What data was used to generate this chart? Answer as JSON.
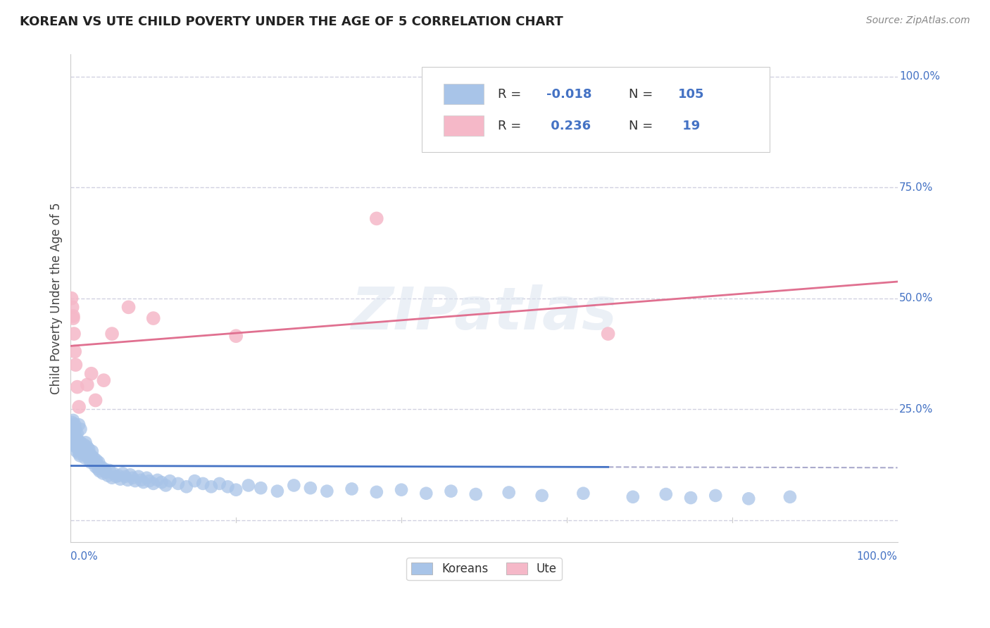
{
  "title": "KOREAN VS UTE CHILD POVERTY UNDER THE AGE OF 5 CORRELATION CHART",
  "source": "Source: ZipAtlas.com",
  "ylabel": "Child Poverty Under the Age of 5",
  "watermark": "ZIPatlas",
  "bg_color": "#ffffff",
  "plot_bg_color": "#ffffff",
  "grid_color": "#ccccdd",
  "korean_line_color": "#4472c4",
  "ute_line_color": "#e07090",
  "korean_dot_color": "#a8c4e8",
  "ute_dot_color": "#f5b8c8",
  "legend_r_color": "#4472c4",
  "title_color": "#222222",
  "source_color": "#888888",
  "axis_label_color": "#4472c4",
  "dashed_line_color": "#aaaacc",
  "korean_R": -0.018,
  "ute_R": 0.236,
  "korean_N": 105,
  "ute_N": 19,
  "korean_scatter_x": [
    0.001,
    0.001,
    0.002,
    0.002,
    0.003,
    0.003,
    0.003,
    0.004,
    0.004,
    0.004,
    0.005,
    0.005,
    0.005,
    0.006,
    0.006,
    0.007,
    0.007,
    0.007,
    0.008,
    0.008,
    0.009,
    0.009,
    0.01,
    0.01,
    0.011,
    0.012,
    0.012,
    0.013,
    0.014,
    0.015,
    0.016,
    0.017,
    0.018,
    0.019,
    0.02,
    0.021,
    0.022,
    0.023,
    0.024,
    0.025,
    0.026,
    0.027,
    0.028,
    0.03,
    0.031,
    0.032,
    0.033,
    0.034,
    0.035,
    0.037,
    0.039,
    0.041,
    0.043,
    0.045,
    0.047,
    0.05,
    0.052,
    0.055,
    0.058,
    0.06,
    0.063,
    0.066,
    0.069,
    0.072,
    0.075,
    0.078,
    0.082,
    0.085,
    0.088,
    0.092,
    0.095,
    0.1,
    0.105,
    0.11,
    0.115,
    0.12,
    0.13,
    0.14,
    0.15,
    0.16,
    0.17,
    0.18,
    0.19,
    0.2,
    0.215,
    0.23,
    0.25,
    0.27,
    0.29,
    0.31,
    0.34,
    0.37,
    0.4,
    0.43,
    0.46,
    0.49,
    0.53,
    0.57,
    0.62,
    0.68,
    0.72,
    0.75,
    0.78,
    0.82,
    0.87
  ],
  "korean_scatter_y": [
    0.205,
    0.215,
    0.195,
    0.22,
    0.18,
    0.2,
    0.225,
    0.175,
    0.21,
    0.19,
    0.17,
    0.195,
    0.215,
    0.165,
    0.205,
    0.185,
    0.17,
    0.155,
    0.195,
    0.175,
    0.16,
    0.18,
    0.15,
    0.215,
    0.145,
    0.205,
    0.175,
    0.155,
    0.165,
    0.155,
    0.17,
    0.14,
    0.175,
    0.145,
    0.165,
    0.14,
    0.16,
    0.15,
    0.13,
    0.145,
    0.155,
    0.13,
    0.14,
    0.12,
    0.135,
    0.125,
    0.115,
    0.13,
    0.11,
    0.12,
    0.105,
    0.115,
    0.108,
    0.1,
    0.112,
    0.095,
    0.105,
    0.098,
    0.1,
    0.092,
    0.105,
    0.098,
    0.09,
    0.102,
    0.095,
    0.088,
    0.098,
    0.09,
    0.085,
    0.095,
    0.088,
    0.082,
    0.09,
    0.085,
    0.078,
    0.088,
    0.082,
    0.075,
    0.088,
    0.082,
    0.075,
    0.082,
    0.075,
    0.068,
    0.078,
    0.072,
    0.065,
    0.078,
    0.072,
    0.065,
    0.07,
    0.063,
    0.068,
    0.06,
    0.065,
    0.058,
    0.062,
    0.055,
    0.06,
    0.052,
    0.058,
    0.05,
    0.055,
    0.048,
    0.052
  ],
  "ute_scatter_x": [
    0.001,
    0.002,
    0.003,
    0.003,
    0.004,
    0.005,
    0.006,
    0.008,
    0.01,
    0.02,
    0.025,
    0.03,
    0.04,
    0.05,
    0.07,
    0.1,
    0.2,
    0.37,
    0.65
  ],
  "ute_scatter_y": [
    0.5,
    0.48,
    0.455,
    0.46,
    0.42,
    0.38,
    0.35,
    0.3,
    0.255,
    0.305,
    0.33,
    0.27,
    0.315,
    0.42,
    0.48,
    0.455,
    0.415,
    0.68,
    0.42
  ],
  "xlim": [
    0.0,
    1.0
  ],
  "ylim": [
    -0.05,
    1.05
  ],
  "yticks": [
    0.0,
    0.25,
    0.5,
    0.75,
    1.0
  ],
  "ytick_labels": [
    "",
    "25.0%",
    "50.0%",
    "75.0%",
    "100.0%"
  ],
  "xtick_left": "0.0%",
  "xtick_right": "100.0%"
}
